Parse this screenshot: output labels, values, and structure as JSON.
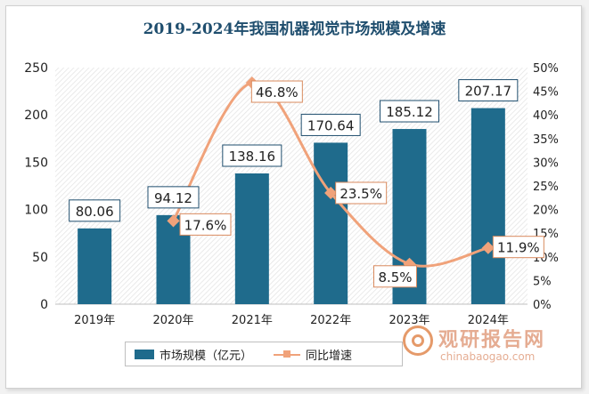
{
  "title": "2019-2024年我国机器视觉市场规模及增速",
  "colors": {
    "bar": "#1f6b8c",
    "line": "#f0a27a",
    "title": "#1f4e6e"
  },
  "chart_data": {
    "type": "bar+line",
    "categories": [
      "2019年",
      "2020年",
      "2021年",
      "2022年",
      "2023年",
      "2024年"
    ],
    "series": [
      {
        "name": "市场规模（亿元）",
        "type": "bar",
        "axis": "left",
        "values": [
          80.06,
          94.12,
          138.16,
          170.64,
          185.12,
          207.17
        ],
        "labels": [
          "80.06",
          "94.12",
          "138.16",
          "170.64",
          "185.12",
          "207.17"
        ]
      },
      {
        "name": "同比增速",
        "type": "line",
        "axis": "right",
        "smooth": true,
        "values": [
          null,
          17.6,
          46.8,
          23.5,
          8.5,
          11.9
        ],
        "labels": [
          "",
          "17.6%",
          "46.8%",
          "23.5%",
          "8.5%",
          "11.9%"
        ]
      }
    ],
    "y_left": {
      "min": 0,
      "max": 250,
      "ticks": [
        "0",
        "50",
        "100",
        "150",
        "200",
        "250"
      ]
    },
    "y_right": {
      "min": 0,
      "max": 50,
      "ticks": [
        "0%",
        "5%",
        "10%",
        "15%",
        "20%",
        "25%",
        "30%",
        "35%",
        "40%",
        "45%",
        "50%"
      ]
    },
    "legend_position": "bottom"
  },
  "watermark": {
    "cn": "观研报告网",
    "en": "chinabaogao.com"
  }
}
